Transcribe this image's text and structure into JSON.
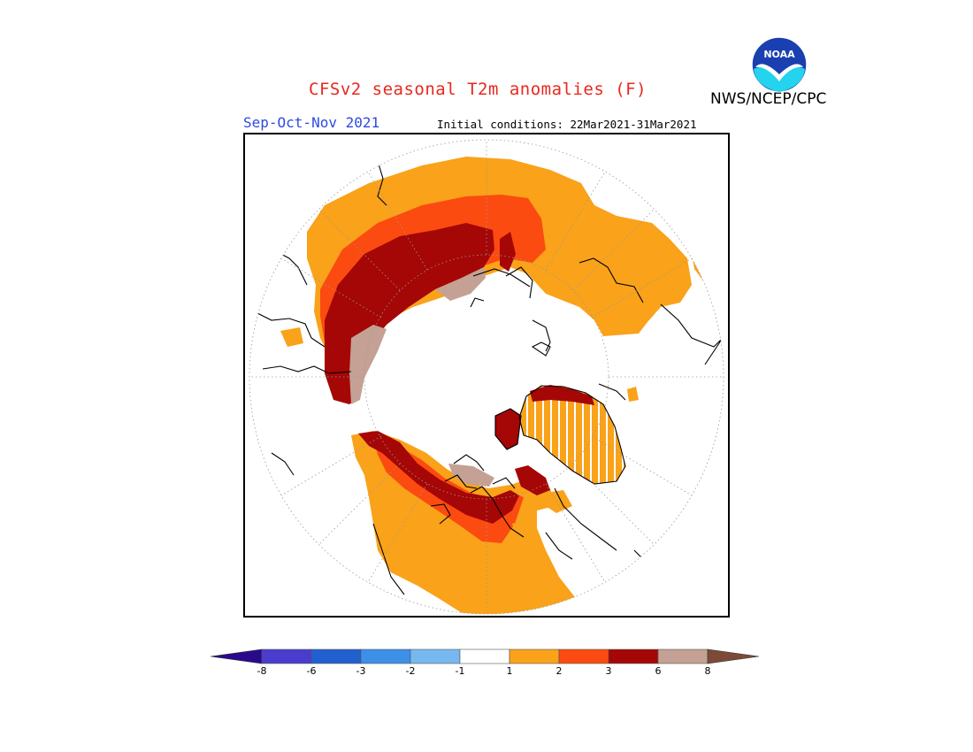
{
  "header": {
    "title": "CFSv2 seasonal T2m anomalies (F)",
    "agency": "NWS/NCEP/CPC",
    "period": "Sep-Oct-Nov 2021",
    "initial_conditions": "Initial conditions: 22Mar2021-31Mar2021"
  },
  "logo": {
    "text": "NOAA",
    "icon": "noaa-logo-icon"
  },
  "colorbar": {
    "colors": [
      "#2a0a8c",
      "#4a3ccc",
      "#2260d0",
      "#3c90e8",
      "#78b8f0",
      "#ffffff",
      "#f9a21a",
      "#fb4b10",
      "#a50606",
      "#c4a194",
      "#7b4b38"
    ],
    "tick_labels": [
      "-8",
      "-6",
      "-3",
      "-2",
      "-1",
      "1",
      "2",
      "3",
      "6",
      "8"
    ]
  },
  "colors": {
    "orange": "#f9a21a",
    "redorange": "#fb4b10",
    "darkred": "#a50606",
    "tan": "#c4a194"
  }
}
